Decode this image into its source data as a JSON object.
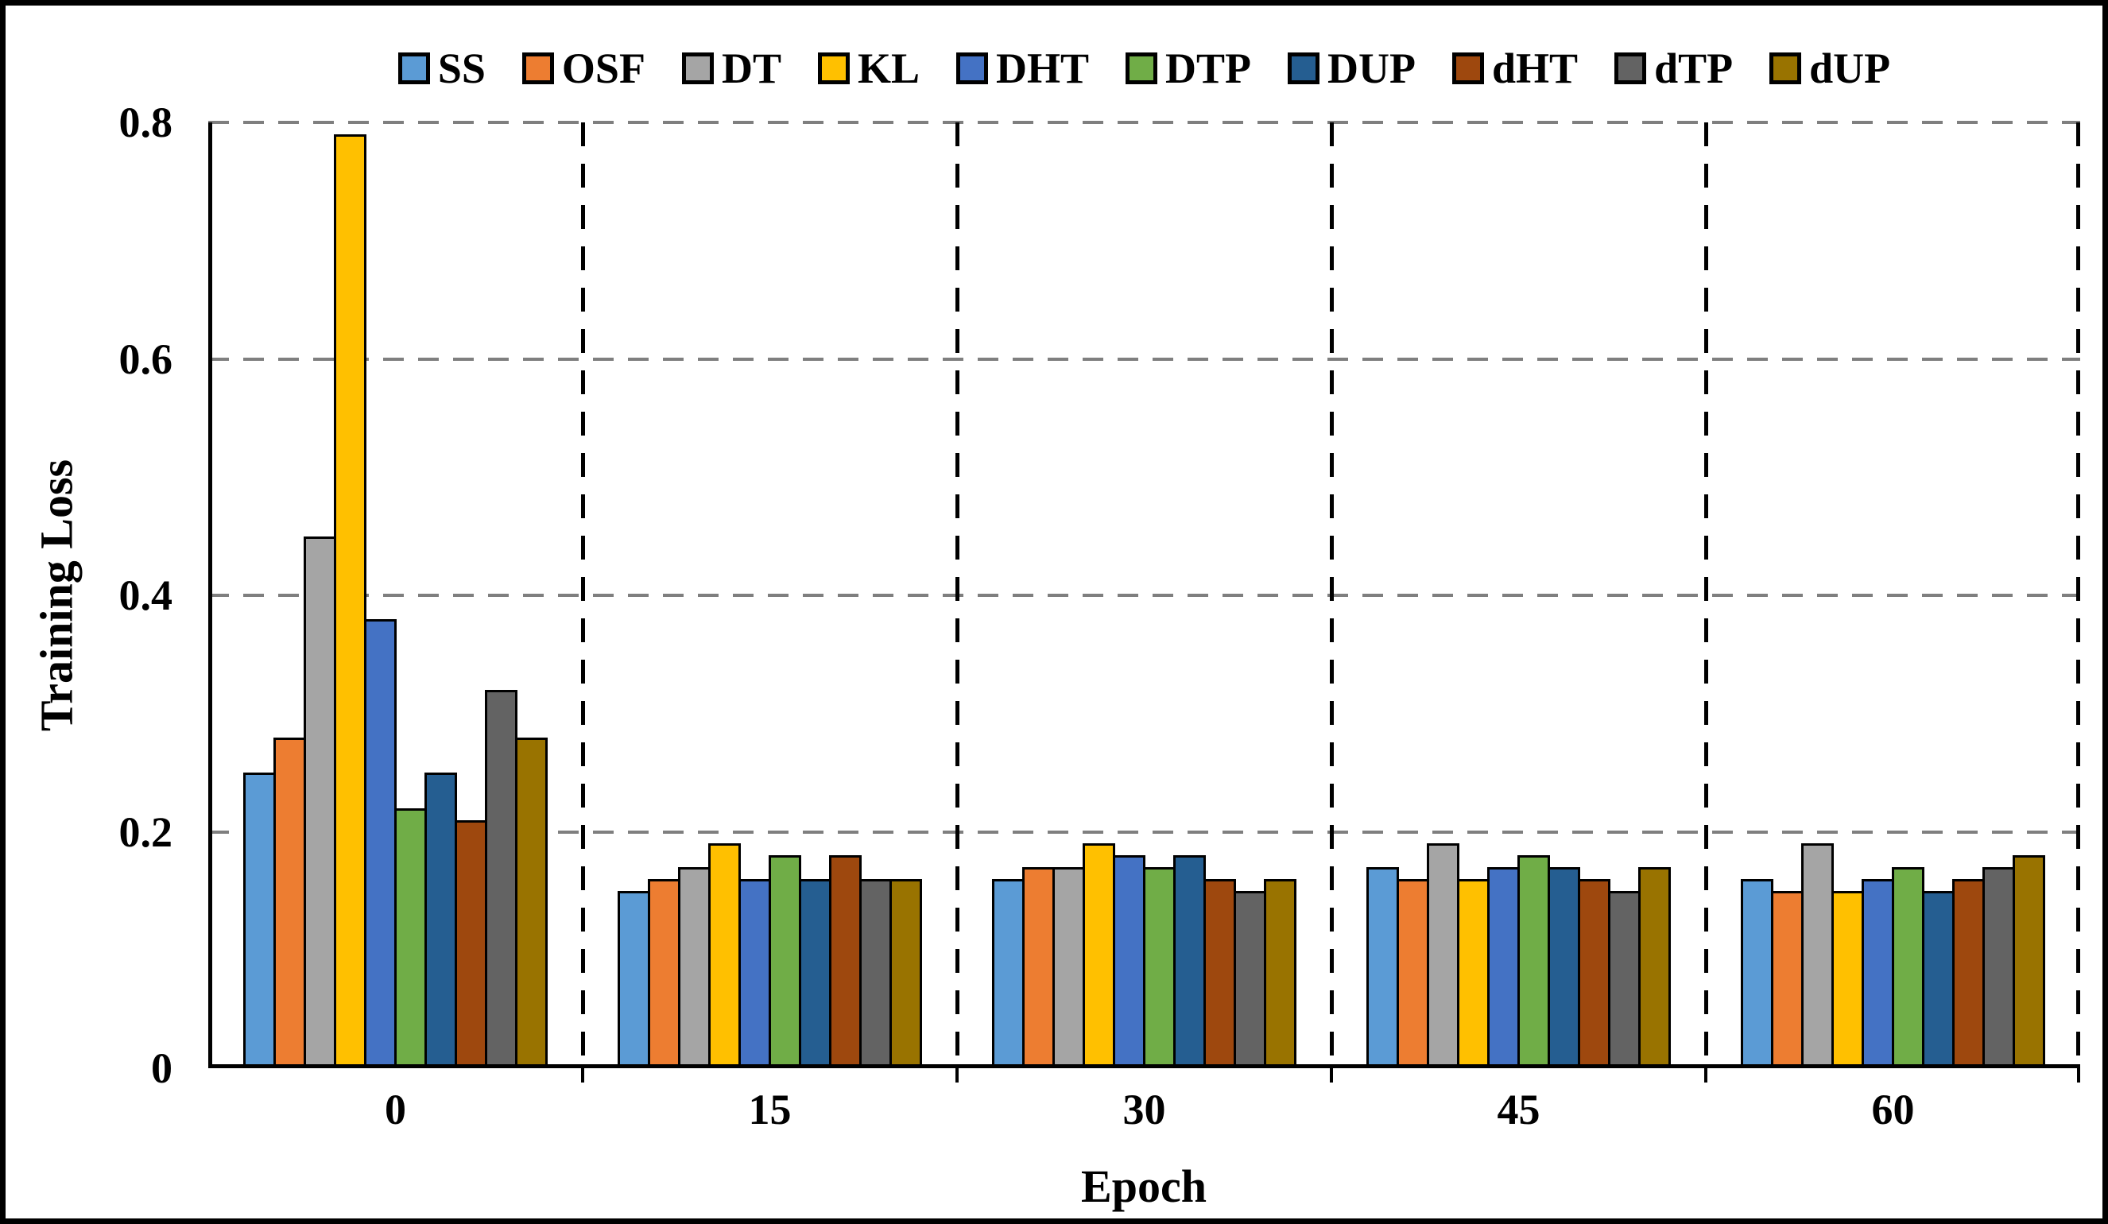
{
  "figure": {
    "background": "#ffffff",
    "frame_color": "#000000",
    "gridline_color": "#7f7f7f",
    "separator_color": "#000000"
  },
  "chart_data": {
    "type": "bar",
    "title": "",
    "xlabel": "Epoch",
    "ylabel": "Training Loss",
    "categories": [
      "0",
      "15",
      "30",
      "45",
      "60"
    ],
    "ylim": [
      0,
      0.8
    ],
    "y_ticks": [
      "0",
      "0.2",
      "0.4",
      "0.6",
      "0.8"
    ],
    "grid": "horizontal dashed gray gridlines; vertical dashed black category separators",
    "legend_position": "top",
    "series": [
      {
        "name": "SS",
        "color": "#5B9BD5",
        "values": [
          0.25,
          0.15,
          0.16,
          0.17,
          0.16
        ]
      },
      {
        "name": "OSF",
        "color": "#ED7D31",
        "values": [
          0.28,
          0.16,
          0.17,
          0.16,
          0.15
        ]
      },
      {
        "name": "DT",
        "color": "#A5A5A5",
        "values": [
          0.45,
          0.17,
          0.17,
          0.19,
          0.19
        ]
      },
      {
        "name": "KL",
        "color": "#FFC000",
        "values": [
          0.79,
          0.19,
          0.19,
          0.16,
          0.15
        ]
      },
      {
        "name": "DHT",
        "color": "#4472C4",
        "values": [
          0.38,
          0.16,
          0.18,
          0.17,
          0.16
        ]
      },
      {
        "name": "DTP",
        "color": "#70AD47",
        "values": [
          0.22,
          0.18,
          0.17,
          0.18,
          0.17
        ]
      },
      {
        "name": "DUP",
        "color": "#255E91",
        "values": [
          0.25,
          0.16,
          0.18,
          0.17,
          0.15
        ]
      },
      {
        "name": "dHT",
        "color": "#9E480E",
        "values": [
          0.21,
          0.18,
          0.16,
          0.16,
          0.16
        ]
      },
      {
        "name": "dTP",
        "color": "#636363",
        "values": [
          0.32,
          0.16,
          0.15,
          0.15,
          0.17
        ]
      },
      {
        "name": "dUP",
        "color": "#997300",
        "values": [
          0.28,
          0.16,
          0.16,
          0.17,
          0.18
        ]
      }
    ]
  }
}
